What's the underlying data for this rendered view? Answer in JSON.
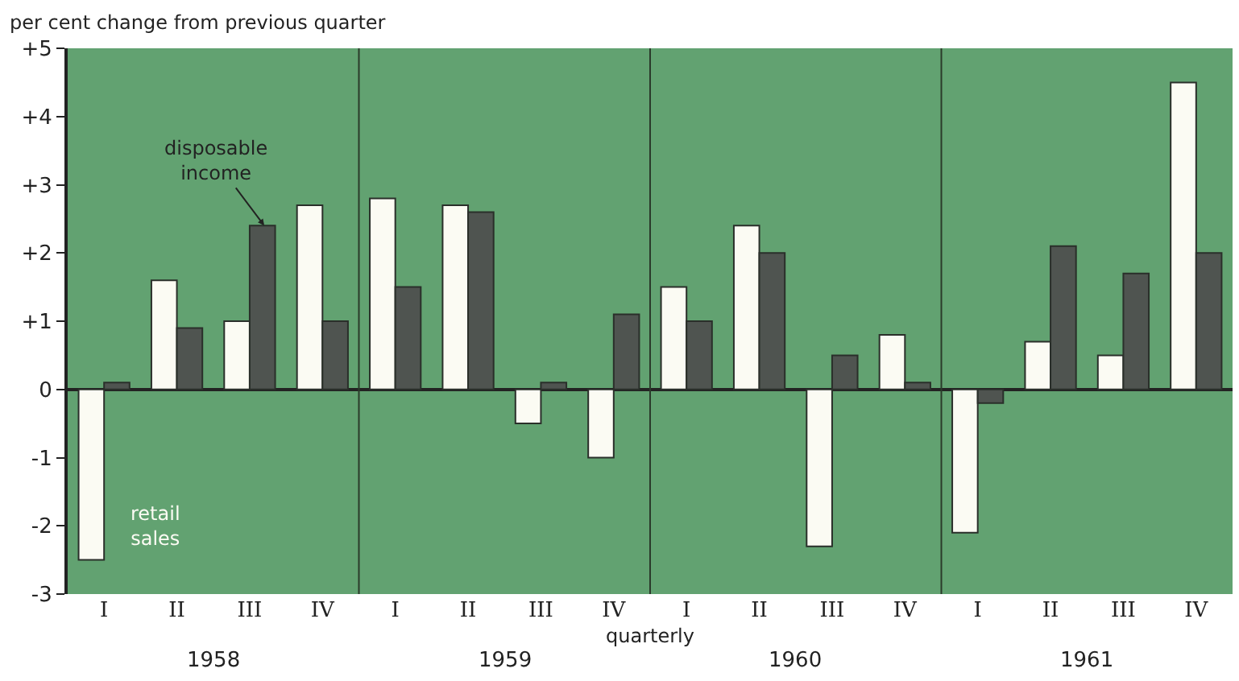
{
  "chart_data": {
    "type": "bar",
    "ylabel": "per cent change from previous quarter",
    "xlabel": "quarterly",
    "categories": [
      "I",
      "II",
      "III",
      "IV",
      "I",
      "II",
      "III",
      "IV",
      "I",
      "II",
      "III",
      "IV",
      "I",
      "II",
      "III",
      "IV"
    ],
    "series": [
      {
        "name": "retail sales",
        "color": "#fbfbf3",
        "values": [
          -2.5,
          1.6,
          1.0,
          2.7,
          2.8,
          2.7,
          -0.5,
          -1.0,
          1.5,
          2.4,
          -2.3,
          0.8,
          -2.1,
          0.7,
          0.5,
          4.5
        ]
      },
      {
        "name": "disposable income",
        "color": "#4f5450",
        "values": [
          0.1,
          0.9,
          2.4,
          1.0,
          1.5,
          2.6,
          0.1,
          1.1,
          1.0,
          2.0,
          0.5,
          0.1,
          -0.2,
          2.1,
          1.7,
          2.0
        ]
      }
    ],
    "annotations": [
      "1958",
      "1959",
      "1960",
      "1961"
    ],
    "ylim": [
      -3,
      5
    ],
    "yticks": [
      {
        "value": -3,
        "label": "-3"
      },
      {
        "value": -2,
        "label": "-2"
      },
      {
        "value": -1,
        "label": "-1"
      },
      0,
      {
        "value": 1,
        "label": "+1"
      },
      {
        "value": 2,
        "label": "+2"
      },
      {
        "value": 3,
        "label": "+3"
      },
      {
        "value": 4,
        "label": "+4"
      },
      {
        "value": 5,
        "label": "+5"
      }
    ],
    "grid": false,
    "legend": false
  }
}
